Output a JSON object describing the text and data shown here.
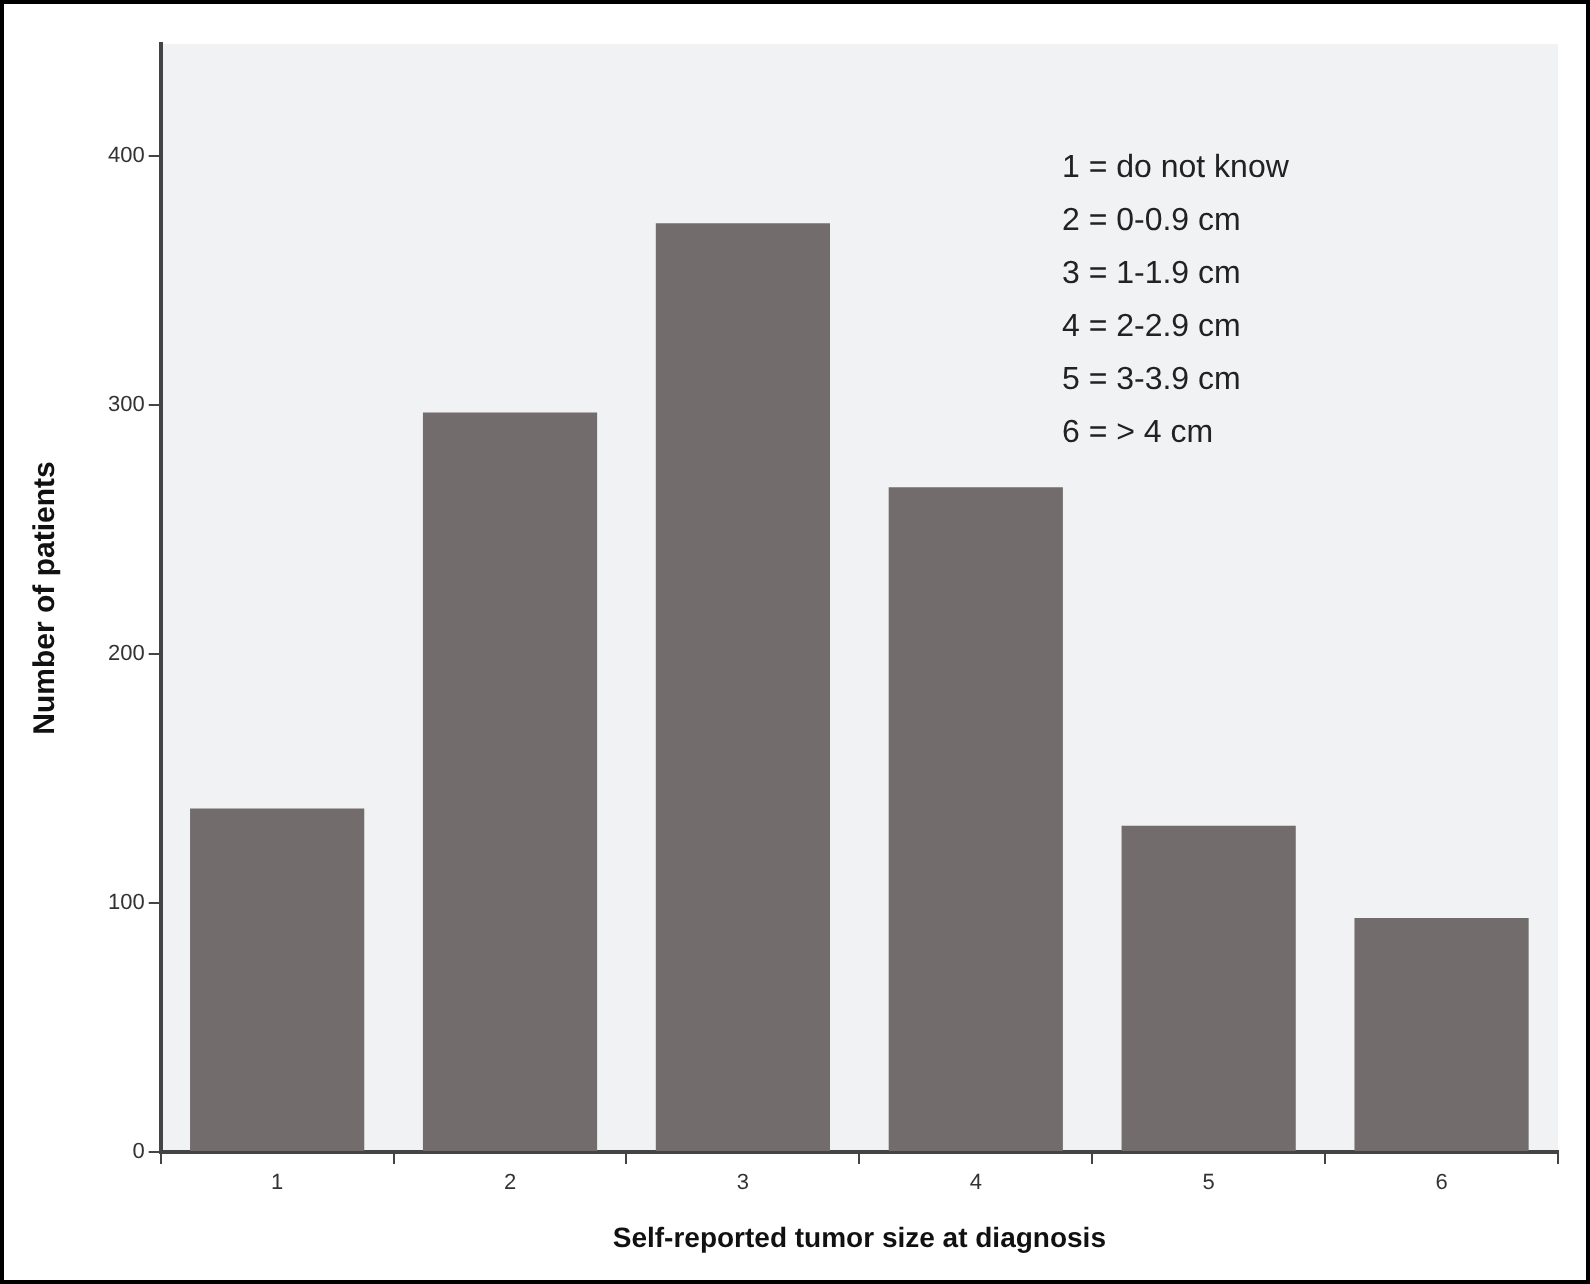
{
  "chart_data": {
    "type": "bar",
    "xlabel": "Self-reported tumor size at diagnosis",
    "ylabel": "Number of patients",
    "categories": [
      "1",
      "2",
      "3",
      "4",
      "5",
      "6"
    ],
    "values": [
      138,
      297,
      373,
      267,
      131,
      94
    ],
    "color": "#726c6c",
    "ylim": [
      0,
      445
    ],
    "yticks": [
      0,
      100,
      200,
      300,
      400
    ],
    "grid": false,
    "legend": false,
    "annotations": [
      "1 = do not know",
      "2 = 0-0.9 cm",
      "3 = 1-1.9 cm",
      "4 = 2-2.9 cm",
      "5 = 3-3.9 cm",
      "6 = > 4 cm"
    ]
  }
}
